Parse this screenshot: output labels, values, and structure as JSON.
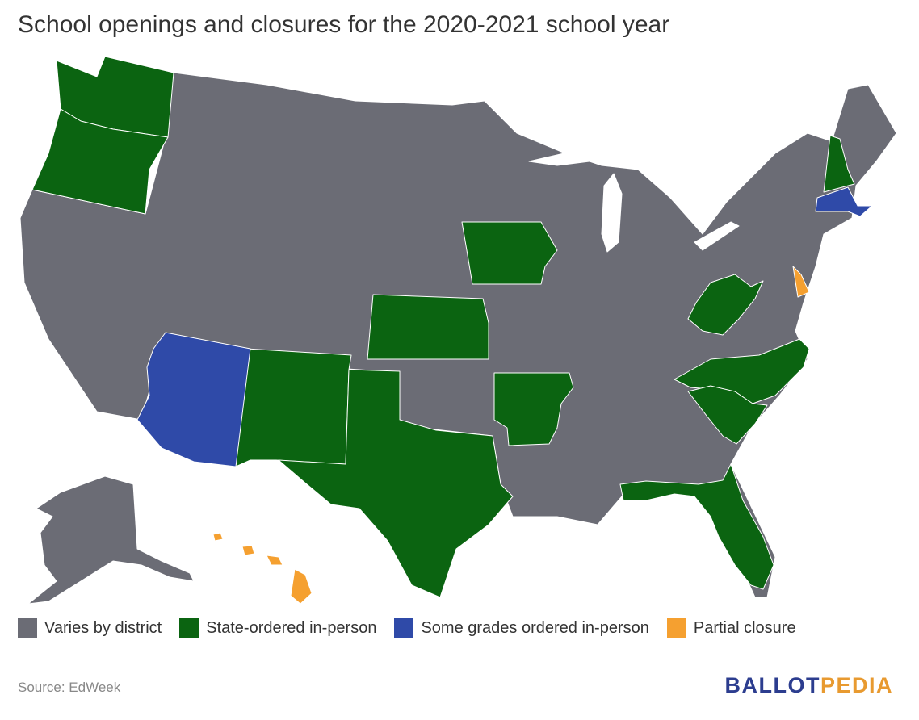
{
  "title": "School openings and closures for the 2020-2021 school year",
  "colors": {
    "varies": "#6b6c75",
    "state_ordered": "#0b6411",
    "some_grades": "#2f4aa8",
    "partial": "#f5a030"
  },
  "legend": [
    {
      "label": "Varies by district",
      "color": "#6b6c75"
    },
    {
      "label": "State-ordered in-person",
      "color": "#0b6411"
    },
    {
      "label": "Some grades ordered in-person",
      "color": "#2f4aa8"
    },
    {
      "label": "Partial closure",
      "color": "#f5a030"
    }
  ],
  "source": "Source: EdWeek",
  "brand": {
    "part1": "BALLOT",
    "part2": "PEDIA"
  },
  "status_by_state": {
    "Washington": "State-ordered in-person",
    "Oregon": "State-ordered in-person",
    "Iowa": "State-ordered in-person",
    "Kansas": "State-ordered in-person",
    "New Mexico": "State-ordered in-person",
    "Texas": "State-ordered in-person",
    "Arkansas": "State-ordered in-person",
    "West Virginia": "State-ordered in-person",
    "North Carolina": "State-ordered in-person",
    "South Carolina": "State-ordered in-person",
    "Florida": "State-ordered in-person",
    "New Hampshire": "State-ordered in-person",
    "Arizona": "Some grades ordered in-person",
    "Massachusetts": "Some grades ordered in-person",
    "Delaware": "Partial closure",
    "Hawaii": "Partial closure"
  }
}
